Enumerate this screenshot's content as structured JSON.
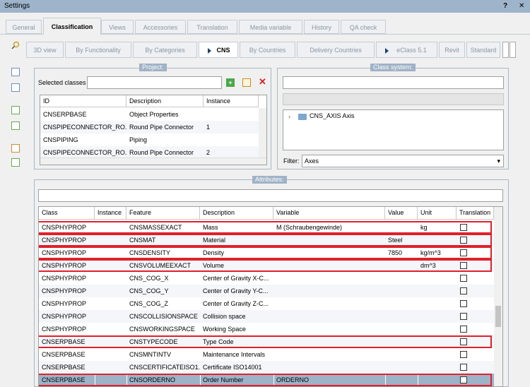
{
  "window": {
    "title": "Settings"
  },
  "tabs": {
    "items": [
      "General",
      "Classification",
      "Views",
      "Accessories",
      "Translation",
      "Media variable",
      "History",
      "QA check"
    ],
    "active": 1
  },
  "subtabs": {
    "items": [
      "3D view",
      "By Functionality",
      "By Categories",
      "CNS",
      "By Countries",
      "Delivery Countries",
      "eClass 5.1",
      "Revit",
      "Standard"
    ],
    "active": 3
  },
  "project": {
    "title": "Project:",
    "selected_label": "Selected classes",
    "columns": [
      "ID",
      "Description",
      "Instance"
    ],
    "rows": [
      {
        "id": "CNSERPBASE",
        "description": "Object Properties"
      },
      {
        "id": "CNSPIPECONNECTOR_RO...",
        "description": "Round Pipe Connector",
        "instance": "1"
      },
      {
        "id": "CNSPIPING",
        "description": "Piping"
      },
      {
        "id": "CNSPIPECONNECTOR_RO...",
        "description": "Round Pipe Connector",
        "instance": "2"
      }
    ]
  },
  "class_system": {
    "title": "Class system:",
    "tree_item": "CNS_AXIS Axis",
    "filter_label": "Filter:",
    "filter_value": "Axes"
  },
  "attributes": {
    "title": "Attributes:",
    "columns": [
      "Class",
      "Instance",
      "Feature",
      "Description",
      "Variable",
      "Value",
      "Unit",
      "Translation"
    ],
    "rows": [
      {
        "class": "CNSPHYPROP",
        "feature": "CNSMASSEXACT",
        "description": "Mass",
        "variable": "M (Schraubengewinde)",
        "unit": "kg",
        "highlighted": true
      },
      {
        "class": "CNSPHYPROP",
        "feature": "CNSMAT",
        "description": "Material",
        "value": "Steel",
        "highlighted": true
      },
      {
        "class": "CNSPHYPROP",
        "feature": "CNSDENSITY",
        "description": "Density",
        "value": "7850",
        "unit": "kg/m^3",
        "highlighted": true
      },
      {
        "class": "CNSPHYPROP",
        "feature": "CNSVOLUMEEXACT",
        "description": "Volume",
        "unit": "dm^3",
        "highlighted": true
      },
      {
        "class": "CNSPHYPROP",
        "feature": "CNS_COG_X",
        "description": "Center of Gravity X-C..."
      },
      {
        "class": "CNSPHYPROP",
        "feature": "CNS_COG_Y",
        "description": "Center of Gravity Y-C..."
      },
      {
        "class": "CNSPHYPROP",
        "feature": "CNS_COG_Z",
        "description": "Center of Gravity Z-C..."
      },
      {
        "class": "CNSPHYPROP",
        "feature": "CNSCOLLISIONSPACE",
        "description": "Collision space"
      },
      {
        "class": "CNSPHYPROP",
        "feature": "CNSWORKINGSPACE",
        "description": "Working Space"
      },
      {
        "class": "CNSERPBASE",
        "feature": "CNSTYPECODE",
        "description": "Type Code",
        "highlighted": true
      },
      {
        "class": "CNSERPBASE",
        "feature": "CNSMNTINTV",
        "description": "Maintenance Intervals"
      },
      {
        "class": "CNSERPBASE",
        "feature": "CNSCERTIFICATEISO1...",
        "description": "Certificate ISO14001"
      },
      {
        "class": "CNSERPBASE",
        "feature": "CNSORDERNO",
        "description": "Order Number",
        "variable": "ORDERNO",
        "highlighted": true,
        "selected": true
      }
    ]
  }
}
